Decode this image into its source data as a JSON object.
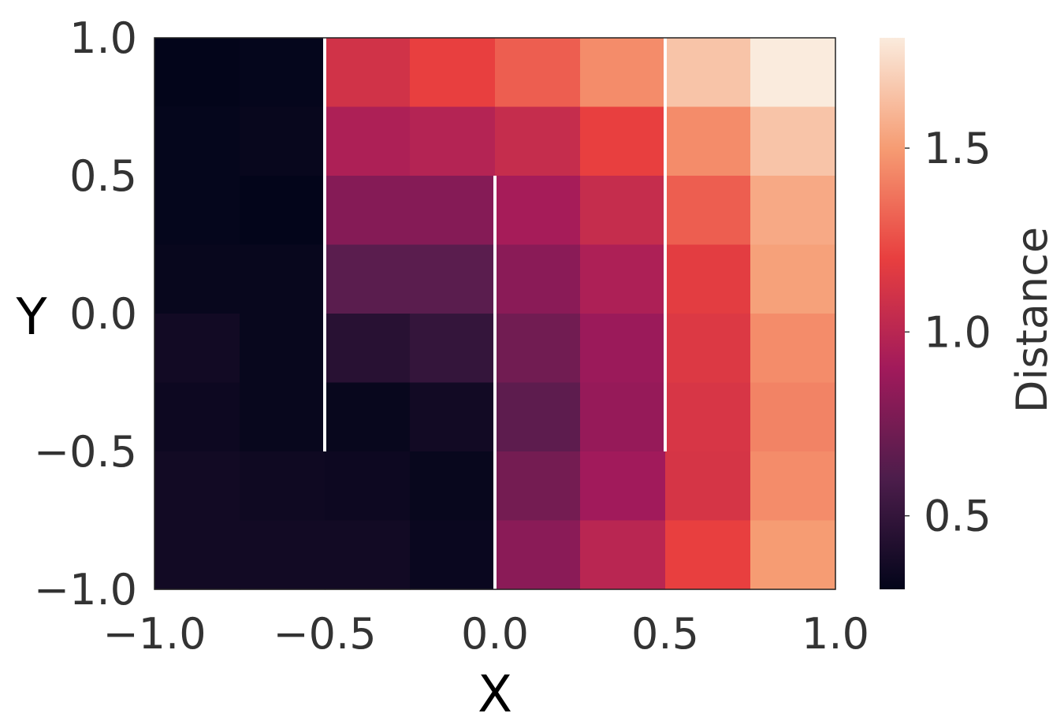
{
  "chart_data": {
    "type": "heatmap",
    "xlabel": "X",
    "ylabel": "Y",
    "xlim": [
      -1.0,
      1.0
    ],
    "ylim": [
      -1.0,
      1.0
    ],
    "grid": false,
    "x_ticks": [
      -1.0,
      -0.5,
      0.0,
      0.5,
      1.0
    ],
    "y_ticks": [
      -1.0,
      -0.5,
      0.0,
      0.5,
      1.0
    ],
    "x_tick_labels": [
      "−1.0",
      "−0.5",
      "0.0",
      "0.5",
      "1.0"
    ],
    "y_tick_labels": [
      "−1.0",
      "−0.5",
      "0.0",
      "0.5",
      "1.0"
    ],
    "x_edges": [
      -1.0,
      -0.75,
      -0.5,
      -0.25,
      0.0,
      0.25,
      0.5,
      0.75,
      1.0
    ],
    "y_edges": [
      1.0,
      0.75,
      0.5,
      0.25,
      0.0,
      -0.25,
      -0.5,
      -0.75,
      -1.0
    ],
    "values": [
      [
        0.3,
        0.31,
        1.1,
        1.2,
        1.3,
        1.45,
        1.65,
        1.8
      ],
      [
        0.31,
        0.32,
        0.95,
        0.98,
        1.05,
        1.2,
        1.45,
        1.65
      ],
      [
        0.31,
        0.3,
        0.8,
        0.8,
        0.92,
        1.05,
        1.3,
        1.55
      ],
      [
        0.32,
        0.32,
        0.65,
        0.65,
        0.82,
        0.95,
        1.18,
        1.52
      ],
      [
        0.36,
        0.32,
        0.45,
        0.5,
        0.73,
        0.88,
        1.15,
        1.45
      ],
      [
        0.34,
        0.32,
        0.32,
        0.36,
        0.66,
        0.86,
        1.13,
        1.42
      ],
      [
        0.36,
        0.35,
        0.34,
        0.32,
        0.74,
        0.9,
        1.12,
        1.45
      ],
      [
        0.36,
        0.36,
        0.36,
        0.33,
        0.82,
        1.0,
        1.2,
        1.5
      ]
    ],
    "walls": [
      {
        "x": -0.5,
        "y_from": -0.5,
        "y_to": 1.0
      },
      {
        "x": 0.0,
        "y_from": -1.0,
        "y_to": 0.5
      },
      {
        "x": 0.5,
        "y_from": -0.5,
        "y_to": 1.0
      }
    ],
    "wall_color": "#ffffff",
    "colorbar": {
      "label": "Distance",
      "min": 0.3,
      "max": 1.8,
      "ticks": [
        0.5,
        1.0,
        1.5
      ],
      "tick_labels": [
        "0.5",
        "1.0",
        "1.5"
      ],
      "colormap": "rocket",
      "stops": [
        "#03051a",
        "#4c1d4b",
        "#a11a5b",
        "#e83f3f",
        "#f69c73",
        "#faebdd"
      ]
    }
  }
}
